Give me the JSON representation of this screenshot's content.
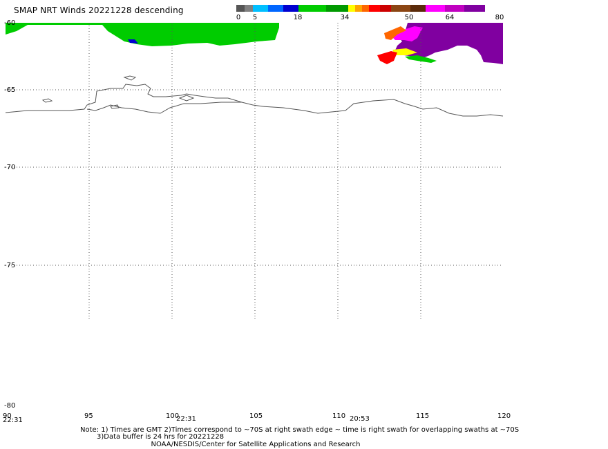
{
  "title": "SMAP NRT Winds  20221228 descending",
  "colorbar": {
    "labels": [
      "0",
      "5",
      "18",
      "34",
      "50",
      "64",
      "80"
    ],
    "segments": [
      "#555555",
      "#808080",
      "#00bfff",
      "#0066ff",
      "#0000d0",
      "#00cc00",
      "#009900",
      "#ffff00",
      "#ffa500",
      "#ff6600",
      "#ff0000",
      "#cc0000",
      "#8b4513",
      "#5a2a0a",
      "#ff00ff",
      "#c000c0",
      "#8000a0"
    ]
  },
  "map": {
    "lat_labels": [
      "-60",
      "-65",
      "-70",
      "-75",
      "-80"
    ],
    "lon_labels": [
      "90",
      "95",
      "100",
      "105",
      "110",
      "115",
      "120"
    ],
    "time_labels": [
      "22:31",
      "22:31",
      "20:53"
    ],
    "colors": {
      "green": "#00cc00",
      "purple": "#8000a0",
      "coast": "#555555",
      "grid": "#555555"
    }
  },
  "notes": {
    "line1": "Note: 1) Times are GMT 2)Times correspond to ~70S at right swath edge ~ time is right swath for overlapping swaths at ~70S",
    "line2": "3)Data buffer is 24 hrs for 20221228",
    "line3": "NOAA/NESDIS/Center for Satellite Applications and Research"
  }
}
